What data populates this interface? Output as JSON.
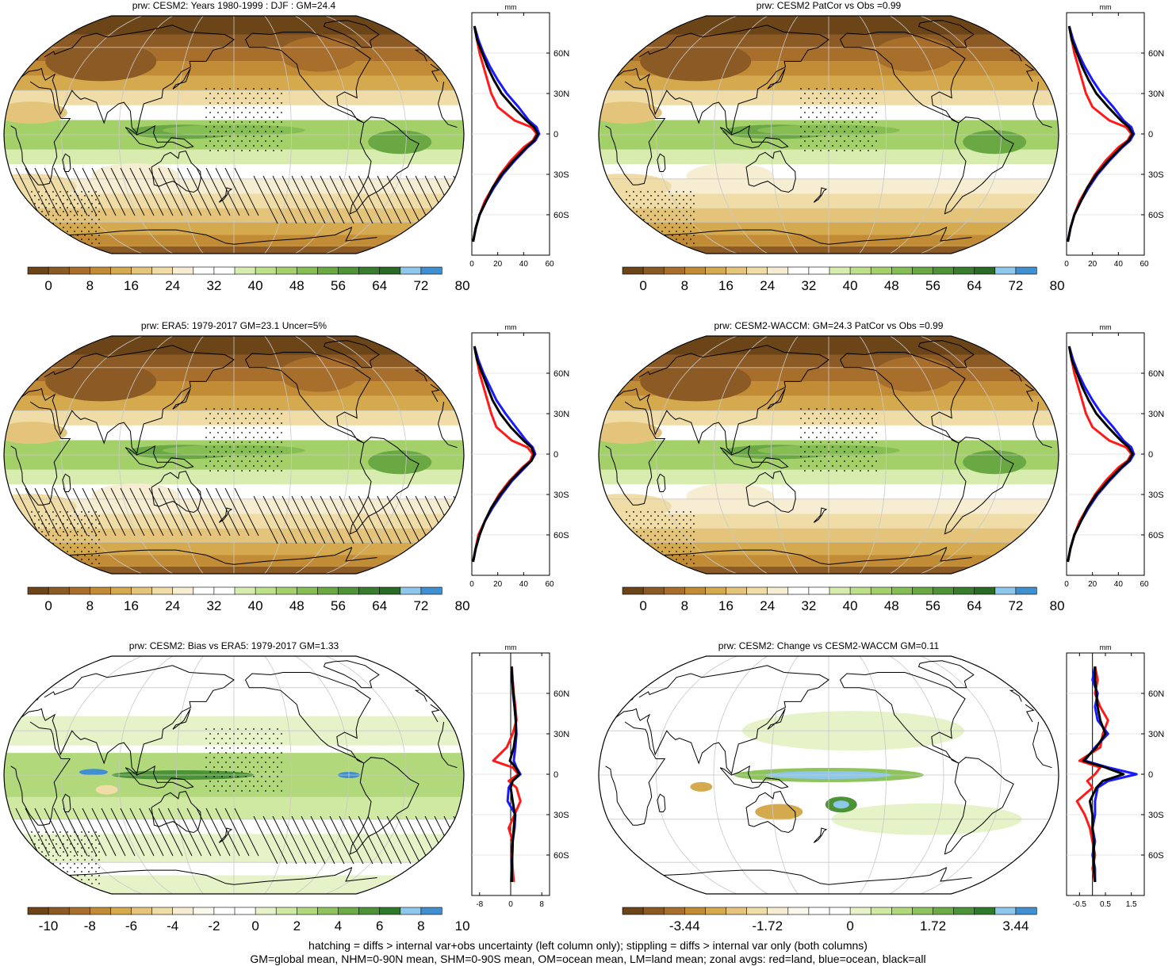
{
  "footer": {
    "line1": "hatching = diffs > internal var+obs uncertainty (left column only); stippling = diffs > internal var only (both columns)",
    "line2": "GM=global mean, NHM=0-90N mean, SHM=0-90S mean, OM=ocean mean, LM=land mean; zonal avgs: red=land, blue=ocean, black=all"
  },
  "colors": {
    "land": "#ff1a1a",
    "ocean": "#1a1aff",
    "all": "#000000"
  },
  "chart_data": [
    {
      "type": "heatmap",
      "title": "prw: CESM2: Years 1980-1999 : DJF : GM=24.4",
      "kind": "mean",
      "colorbar": {
        "type": "sequential",
        "ticks": [
          "0",
          "8",
          "16",
          "24",
          "32",
          "40",
          "48",
          "56",
          "64",
          "72",
          "80"
        ]
      },
      "hatching": true,
      "stippling": true,
      "zonal": {
        "unit": "mm",
        "xlim": [
          0,
          60
        ],
        "xticks": [
          "0",
          "20",
          "40",
          "60"
        ],
        "ylabels": [
          "60N",
          "30N",
          "0",
          "30S",
          "60S"
        ],
        "lat": [
          80,
          70,
          60,
          50,
          40,
          30,
          20,
          10,
          5,
          0,
          -5,
          -10,
          -20,
          -30,
          -40,
          -50,
          -60,
          -70,
          -80
        ],
        "land": [
          2,
          4,
          6,
          9,
          12,
          15,
          20,
          33,
          46,
          50,
          47,
          40,
          30,
          22,
          16,
          10,
          6,
          3,
          1
        ],
        "ocean": [
          2,
          5,
          9,
          14,
          20,
          27,
          36,
          44,
          50,
          52,
          49,
          43,
          33,
          24,
          17,
          11,
          6,
          3,
          1
        ],
        "all": [
          2,
          4,
          8,
          12,
          17,
          23,
          32,
          42,
          48,
          51,
          48,
          42,
          32,
          23,
          16,
          11,
          6,
          3,
          1
        ]
      }
    },
    {
      "type": "heatmap",
      "title": "prw: CESM2 PatCor vs Obs =0.99",
      "kind": "mean",
      "colorbar": {
        "type": "sequential",
        "ticks": [
          "0",
          "8",
          "16",
          "24",
          "32",
          "40",
          "48",
          "56",
          "64",
          "72",
          "80"
        ]
      },
      "hatching": false,
      "stippling": true,
      "zonal": {
        "unit": "mm",
        "xlim": [
          0,
          60
        ],
        "xticks": [
          "0",
          "20",
          "40",
          "60"
        ],
        "ylabels": [
          "60N",
          "30N",
          "0",
          "30S",
          "60S"
        ],
        "lat": [
          80,
          70,
          60,
          50,
          40,
          30,
          20,
          10,
          5,
          0,
          -5,
          -10,
          -20,
          -30,
          -40,
          -50,
          -60,
          -70,
          -80
        ],
        "land": [
          2,
          4,
          6,
          9,
          12,
          15,
          20,
          33,
          46,
          50,
          47,
          40,
          30,
          22,
          16,
          10,
          6,
          3,
          1
        ],
        "ocean": [
          2,
          5,
          9,
          14,
          20,
          27,
          36,
          44,
          50,
          52,
          49,
          43,
          33,
          24,
          17,
          11,
          6,
          3,
          1
        ],
        "all": [
          2,
          4,
          8,
          12,
          17,
          23,
          32,
          42,
          48,
          51,
          48,
          42,
          32,
          23,
          16,
          11,
          6,
          3,
          1
        ]
      }
    },
    {
      "type": "heatmap",
      "title": "prw: ERA5: 1979-2017 GM=23.1 Uncer=5%",
      "kind": "mean",
      "colorbar": {
        "type": "sequential",
        "ticks": [
          "0",
          "8",
          "16",
          "24",
          "32",
          "40",
          "48",
          "56",
          "64",
          "72",
          "80"
        ]
      },
      "hatching": true,
      "stippling": true,
      "zonal": {
        "unit": "mm",
        "xlim": [
          0,
          60
        ],
        "xticks": [
          "0",
          "20",
          "40",
          "60"
        ],
        "ylabels": [
          "60N",
          "30N",
          "0",
          "30S",
          "60S"
        ],
        "lat": [
          80,
          70,
          60,
          50,
          40,
          30,
          20,
          10,
          5,
          0,
          -5,
          -10,
          -20,
          -30,
          -40,
          -50,
          -60,
          -70,
          -80
        ],
        "land": [
          2,
          4,
          6,
          9,
          12,
          15,
          19,
          31,
          43,
          47,
          45,
          39,
          29,
          21,
          15,
          10,
          5,
          3,
          1
        ],
        "ocean": [
          2,
          5,
          9,
          14,
          19,
          26,
          34,
          42,
          47,
          49,
          46,
          41,
          31,
          23,
          16,
          10,
          6,
          3,
          1
        ],
        "all": [
          2,
          4,
          8,
          12,
          16,
          22,
          30,
          40,
          46,
          48,
          46,
          40,
          30,
          22,
          15,
          10,
          6,
          3,
          1
        ]
      }
    },
    {
      "type": "heatmap",
      "title": "prw: CESM2-WACCM: GM=24.3 PatCor vs Obs =0.99",
      "kind": "mean",
      "colorbar": {
        "type": "sequential",
        "ticks": [
          "0",
          "8",
          "16",
          "24",
          "32",
          "40",
          "48",
          "56",
          "64",
          "72",
          "80"
        ]
      },
      "hatching": false,
      "stippling": true,
      "zonal": {
        "unit": "mm",
        "xlim": [
          0,
          60
        ],
        "xticks": [
          "0",
          "20",
          "40",
          "60"
        ],
        "ylabels": [
          "60N",
          "30N",
          "0",
          "30S",
          "60S"
        ],
        "lat": [
          80,
          70,
          60,
          50,
          40,
          30,
          20,
          10,
          5,
          0,
          -5,
          -10,
          -20,
          -30,
          -40,
          -50,
          -60,
          -70,
          -80
        ],
        "land": [
          2,
          4,
          6,
          9,
          12,
          15,
          20,
          33,
          46,
          50,
          47,
          40,
          30,
          22,
          16,
          10,
          6,
          3,
          1
        ],
        "ocean": [
          2,
          5,
          9,
          14,
          20,
          27,
          36,
          44,
          50,
          52,
          49,
          43,
          33,
          24,
          17,
          11,
          6,
          3,
          1
        ],
        "all": [
          2,
          4,
          8,
          12,
          17,
          23,
          32,
          42,
          48,
          51,
          48,
          42,
          32,
          23,
          16,
          11,
          6,
          3,
          1
        ]
      }
    },
    {
      "type": "heatmap",
      "title": "prw: CESM2: Bias vs ERA5: 1979-2017 GM=1.33",
      "kind": "bias",
      "colorbar": {
        "type": "diverging",
        "ticks": [
          "-10",
          "-8",
          "-6",
          "-4",
          "-2",
          "0",
          "2",
          "4",
          "6",
          "8",
          "10"
        ]
      },
      "hatching": true,
      "stippling": true,
      "zonal": {
        "unit": "mm",
        "xlim": [
          -10,
          10
        ],
        "xticks": [
          "-8",
          "0",
          "8"
        ],
        "ylabels": [
          "60N",
          "30N",
          "0",
          "30S",
          "60S"
        ],
        "lat": [
          80,
          70,
          60,
          50,
          40,
          30,
          20,
          10,
          5,
          0,
          -5,
          -10,
          -20,
          -30,
          -40,
          -50,
          -60,
          -70,
          -80
        ],
        "land": [
          0.3,
          0.5,
          0.8,
          1.2,
          1.5,
          0.5,
          -1,
          -4.5,
          0.5,
          2,
          -0.5,
          1.5,
          2.5,
          1,
          -0.5,
          0.5,
          0.3,
          0.5,
          0.8
        ],
        "ocean": [
          0.2,
          0.4,
          0.6,
          1.0,
          1.3,
          1.5,
          1.2,
          0.8,
          1.5,
          2.5,
          0.5,
          -0.5,
          -0.8,
          1.2,
          1.0,
          0.5,
          0.4,
          0.2,
          0.1
        ],
        "all": [
          0.2,
          0.4,
          0.7,
          1.0,
          1.3,
          1.3,
          0.8,
          -0.2,
          1.3,
          2.2,
          0.5,
          0,
          0.5,
          1.1,
          0.8,
          0.5,
          0.4,
          0.3,
          0.3
        ]
      }
    },
    {
      "type": "heatmap",
      "title": "prw: CESM2: Change vs CESM2-WACCM GM=0.11",
      "kind": "change",
      "colorbar": {
        "type": "diverging",
        "ticks": [
          "-3.44",
          "-1.72",
          "0",
          "1.72",
          "3.44"
        ]
      },
      "hatching": false,
      "stippling": false,
      "zonal": {
        "unit": "mm",
        "xlim": [
          -1,
          2
        ],
        "xticks": [
          "-0.5",
          "0.5",
          "1.5"
        ],
        "ylabels": [
          "60N",
          "30N",
          "0",
          "30S",
          "60S"
        ],
        "lat": [
          80,
          70,
          60,
          50,
          40,
          30,
          20,
          10,
          5,
          0,
          -5,
          -10,
          -20,
          -30,
          -40,
          -50,
          -60,
          -70,
          -80
        ],
        "land": [
          0.1,
          0.2,
          0.1,
          0.3,
          0.6,
          0.4,
          0.3,
          -0.5,
          0.3,
          0.1,
          -0.2,
          0.0,
          -0.6,
          -0.3,
          -0.1,
          0.0,
          0.1,
          0.0,
          0.1
        ],
        "ocean": [
          0.1,
          0.0,
          0.2,
          0.1,
          0.2,
          0.6,
          0.1,
          -0.3,
          0.6,
          1.7,
          0.6,
          0.2,
          0.1,
          0.1,
          0.0,
          0.1,
          0.0,
          0.1,
          0.1
        ],
        "all": [
          0.1,
          0.1,
          0.15,
          0.2,
          0.3,
          0.5,
          0.15,
          -0.35,
          0.5,
          1.2,
          0.4,
          0.15,
          -0.1,
          0.0,
          0.0,
          0.05,
          0.05,
          0.05,
          0.1
        ]
      }
    }
  ]
}
